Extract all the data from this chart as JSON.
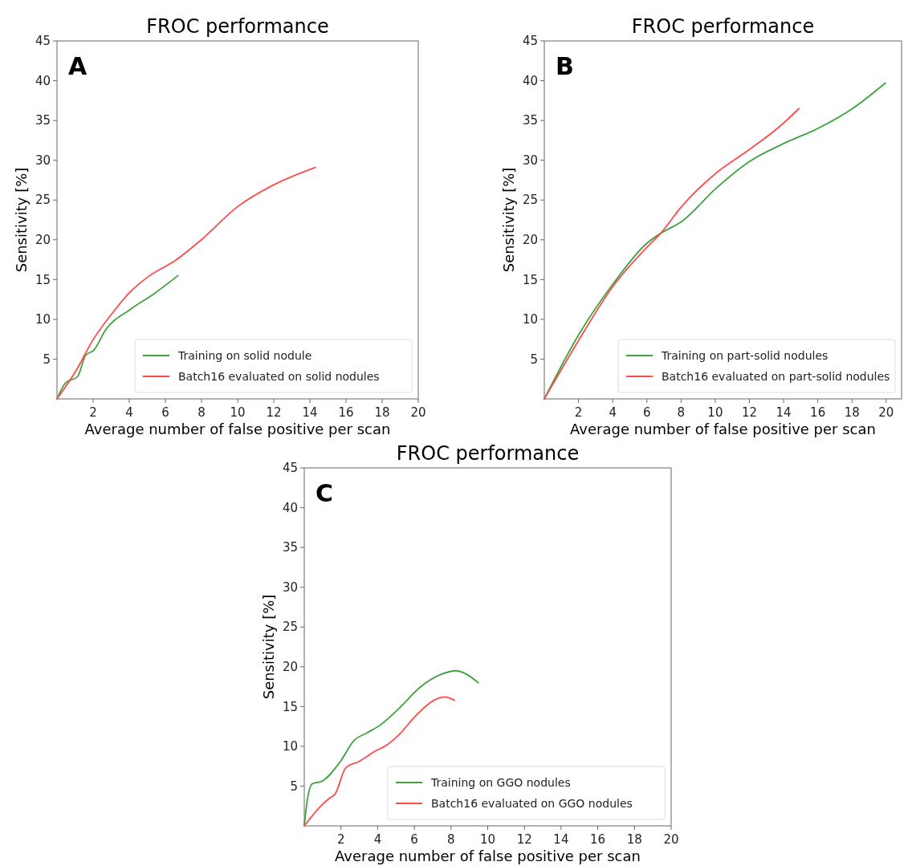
{
  "chart_data": [
    {
      "type": "line",
      "title": "FROC performance",
      "xlabel": "Average number of false positive per scan",
      "ylabel": "Sensitivity [%]",
      "annotations": [
        "A"
      ],
      "xlim": [
        0,
        20
      ],
      "ylim": [
        0,
        45
      ],
      "xticks": [
        2,
        4,
        6,
        8,
        10,
        12,
        14,
        16,
        18,
        20
      ],
      "yticks": [
        5,
        10,
        15,
        20,
        25,
        30,
        35,
        40,
        45
      ],
      "grid": false,
      "legend": "bottom right",
      "line_style": "solid",
      "series": [
        {
          "name": "Training on solid nodule",
          "color": "#3ea33e",
          "x": [
            0,
            0.47,
            1.14,
            1.59,
            2.03,
            2.7,
            4.03,
            5.36,
            6.7
          ],
          "values": [
            0,
            2,
            2.8,
            5.5,
            6.1,
            8.7,
            11.2,
            13.2,
            15.5
          ]
        },
        {
          "name": "Batch16 evaluated on solid nodules",
          "color": "#ff4b4b",
          "x": [
            0,
            1.07,
            1.96,
            3.14,
            4.03,
            5.07,
            6.55,
            8.04,
            9.96,
            11.9,
            14.3
          ],
          "values": [
            0,
            3.6,
            7.3,
            11,
            13.4,
            15.4,
            17.4,
            20.1,
            24.1,
            26.8,
            29.1
          ]
        }
      ]
    },
    {
      "type": "line",
      "title": "FROC performance",
      "xlabel": "Average number of false positive per scan",
      "ylabel": "Sensitivity [%]",
      "annotations": [
        "B"
      ],
      "xlim": [
        0,
        20.9
      ],
      "ylim": [
        0,
        45
      ],
      "xticks": [
        2,
        4,
        6,
        8,
        10,
        12,
        14,
        16,
        18,
        20
      ],
      "yticks": [
        5,
        10,
        15,
        20,
        25,
        30,
        35,
        40,
        45
      ],
      "grid": false,
      "legend": "bottom right",
      "line_style": "solid",
      "series": [
        {
          "name": "Training on part-solid nodules",
          "color": "#3ea33e",
          "x": [
            0,
            2.02,
            4,
            6.02,
            6.8,
            8.04,
            10.06,
            11.9,
            14.1,
            16.1,
            18.1,
            19.95
          ],
          "values": [
            0,
            8.1,
            14.4,
            19.6,
            20.8,
            22.3,
            26.5,
            29.7,
            32.2,
            34.1,
            36.6,
            39.7
          ]
        },
        {
          "name": "Batch16 evaluated on part-solid nodules",
          "color": "#ff4b4b",
          "x": [
            0,
            2.02,
            4,
            6.02,
            6.8,
            8.04,
            10.06,
            11.9,
            13.8,
            14.9
          ],
          "values": [
            0,
            7.4,
            14.1,
            19.1,
            20.8,
            24.2,
            28.4,
            31.2,
            34.3,
            36.5
          ]
        }
      ]
    },
    {
      "type": "line",
      "title": "FROC performance",
      "xlabel": "Average number of false positive per scan",
      "ylabel": "Sensitivity [%]",
      "annotations": [
        "C"
      ],
      "xlim": [
        0,
        20
      ],
      "ylim": [
        0,
        45
      ],
      "xticks": [
        2,
        4,
        6,
        8,
        10,
        12,
        14,
        16,
        18,
        20
      ],
      "yticks": [
        5,
        10,
        15,
        20,
        25,
        30,
        35,
        40,
        45
      ],
      "grid": false,
      "legend": "bottom right",
      "line_style": "solid",
      "series": [
        {
          "name": "Training on GGO nodules",
          "color": "#3ea33e",
          "x": [
            0,
            0.15,
            0.44,
            0.95,
            1.97,
            2.7,
            3.43,
            4.16,
            5.18,
            6.35,
            7.52,
            8.25,
            9.49
          ],
          "values": [
            0,
            3,
            5.3,
            5.6,
            8.1,
            10.7,
            11.7,
            12.7,
            14.8,
            17.5,
            19.1,
            19.5,
            18
          ]
        },
        {
          "name": "Batch16 evaluated on GGO nodules",
          "color": "#ff4b4b",
          "x": [
            0,
            0.95,
            1.39,
            1.68,
            2.26,
            2.99,
            3.87,
            4.45,
            5.18,
            6.06,
            7.08,
            7.66,
            8.18
          ],
          "values": [
            0,
            2.6,
            3.5,
            4,
            7.3,
            8.1,
            9.4,
            10.1,
            11.5,
            13.8,
            15.8,
            16.2,
            15.8
          ]
        }
      ]
    }
  ]
}
